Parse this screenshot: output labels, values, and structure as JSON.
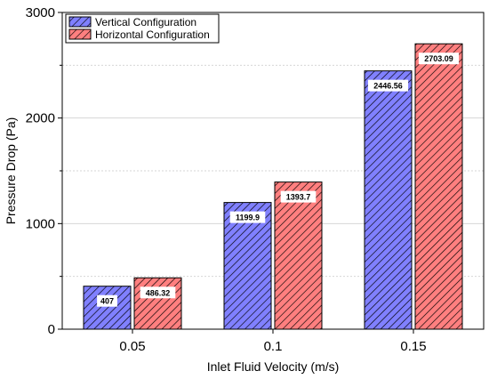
{
  "chart_data": {
    "type": "bar",
    "categories": [
      "0.05",
      "0.1",
      "0.15"
    ],
    "series": [
      {
        "name": "Vertical Configuration",
        "values": [
          407,
          1199.9,
          2446.56
        ],
        "labels": [
          "407",
          "1199.9",
          "2446.56"
        ],
        "color": "#8080ff"
      },
      {
        "name": "Horizontal Configuration",
        "values": [
          486.32,
          1393.7,
          2703.09
        ],
        "labels": [
          "486.32",
          "1393.7",
          "2703.09"
        ],
        "color": "#ff7f7f"
      }
    ],
    "xlabel": "Inlet Fluid Velocity (m/s)",
    "ylabel": "Pressure Drop (Pa)",
    "ylim": [
      0,
      3000
    ],
    "yticks": [
      0,
      1000,
      2000,
      3000
    ],
    "ytick_labels": [
      "0",
      "1000",
      "2000",
      "3000"
    ],
    "grid": true,
    "legend_position": "top-left",
    "pattern": "diagonal-hatch"
  }
}
